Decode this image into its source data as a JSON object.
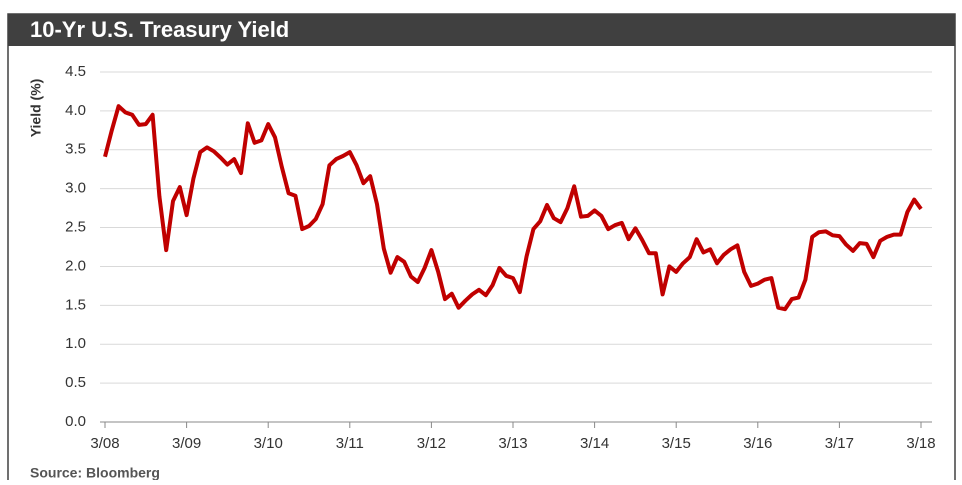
{
  "chart_data": {
    "type": "line",
    "title": "10-Yr U.S. Treasury Yield",
    "y_label": "Yield (%)",
    "source": "Source:   Bloomberg",
    "categories": [
      "3/08",
      null,
      null,
      null,
      null,
      null,
      null,
      null,
      null,
      null,
      null,
      null,
      "3/09",
      null,
      null,
      null,
      null,
      null,
      null,
      null,
      null,
      null,
      null,
      null,
      "3/10",
      null,
      null,
      null,
      null,
      null,
      null,
      null,
      null,
      null,
      null,
      null,
      "3/11",
      null,
      null,
      null,
      null,
      null,
      null,
      null,
      null,
      null,
      null,
      null,
      "3/12",
      null,
      null,
      null,
      null,
      null,
      null,
      null,
      null,
      null,
      null,
      null,
      "3/13",
      null,
      null,
      null,
      null,
      null,
      null,
      null,
      null,
      null,
      null,
      null,
      "3/14",
      null,
      null,
      null,
      null,
      null,
      null,
      null,
      null,
      null,
      null,
      null,
      "3/15",
      null,
      null,
      null,
      null,
      null,
      null,
      null,
      null,
      null,
      null,
      null,
      "3/16",
      null,
      null,
      null,
      null,
      null,
      null,
      null,
      null,
      null,
      null,
      null,
      "3/17",
      null,
      null,
      null,
      null,
      null,
      null,
      null,
      null,
      null,
      null,
      null,
      "3/18"
    ],
    "series": [
      {
        "name": "10-Yr U.S. Treasury Yield",
        "color": "#c00000",
        "values": [
          3.41,
          3.75,
          4.06,
          3.98,
          3.95,
          3.82,
          3.83,
          3.95,
          2.9,
          2.21,
          2.84,
          3.02,
          2.66,
          3.13,
          3.47,
          3.53,
          3.48,
          3.4,
          3.31,
          3.38,
          3.2,
          3.84,
          3.59,
          3.62,
          3.83,
          3.66,
          3.28,
          2.94,
          2.91,
          2.48,
          2.52,
          2.61,
          2.8,
          3.3,
          3.38,
          3.42,
          3.47,
          3.3,
          3.07,
          3.16,
          2.8,
          2.23,
          1.92,
          2.12,
          2.06,
          1.87,
          1.8,
          1.98,
          2.21,
          1.93,
          1.58,
          1.65,
          1.47,
          1.56,
          1.64,
          1.7,
          1.63,
          1.76,
          1.98,
          1.88,
          1.85,
          1.67,
          2.13,
          2.48,
          2.58,
          2.79,
          2.62,
          2.57,
          2.75,
          3.03,
          2.64,
          2.65,
          2.72,
          2.65,
          2.48,
          2.53,
          2.56,
          2.35,
          2.49,
          2.34,
          2.17,
          2.17,
          1.64,
          2.0,
          1.93,
          2.04,
          2.12,
          2.35,
          2.18,
          2.22,
          2.04,
          2.15,
          2.22,
          2.27,
          1.93,
          1.75,
          1.78,
          1.83,
          1.85,
          1.47,
          1.45,
          1.58,
          1.6,
          1.83,
          2.38,
          2.44,
          2.45,
          2.4,
          2.39,
          2.28,
          2.2,
          2.3,
          2.29,
          2.12,
          2.33,
          2.38,
          2.41,
          2.41,
          2.7,
          2.86,
          2.74
        ]
      }
    ],
    "ylim": [
      0,
      4.5
    ],
    "yticks": [
      {
        "value": 0,
        "label": "0.0"
      },
      {
        "value": 0.5,
        "label": "0.5"
      },
      {
        "value": 1,
        "label": "1.0"
      },
      {
        "value": 1.5,
        "label": "1.5"
      },
      {
        "value": 2,
        "label": "2.0"
      },
      {
        "value": 2.5,
        "label": "2.5"
      },
      {
        "value": 3,
        "label": "3.0"
      },
      {
        "value": 3.5,
        "label": "3.5"
      },
      {
        "value": 4,
        "label": "4.0"
      },
      {
        "value": 4.5,
        "label": "4.5"
      }
    ],
    "grid": true
  }
}
